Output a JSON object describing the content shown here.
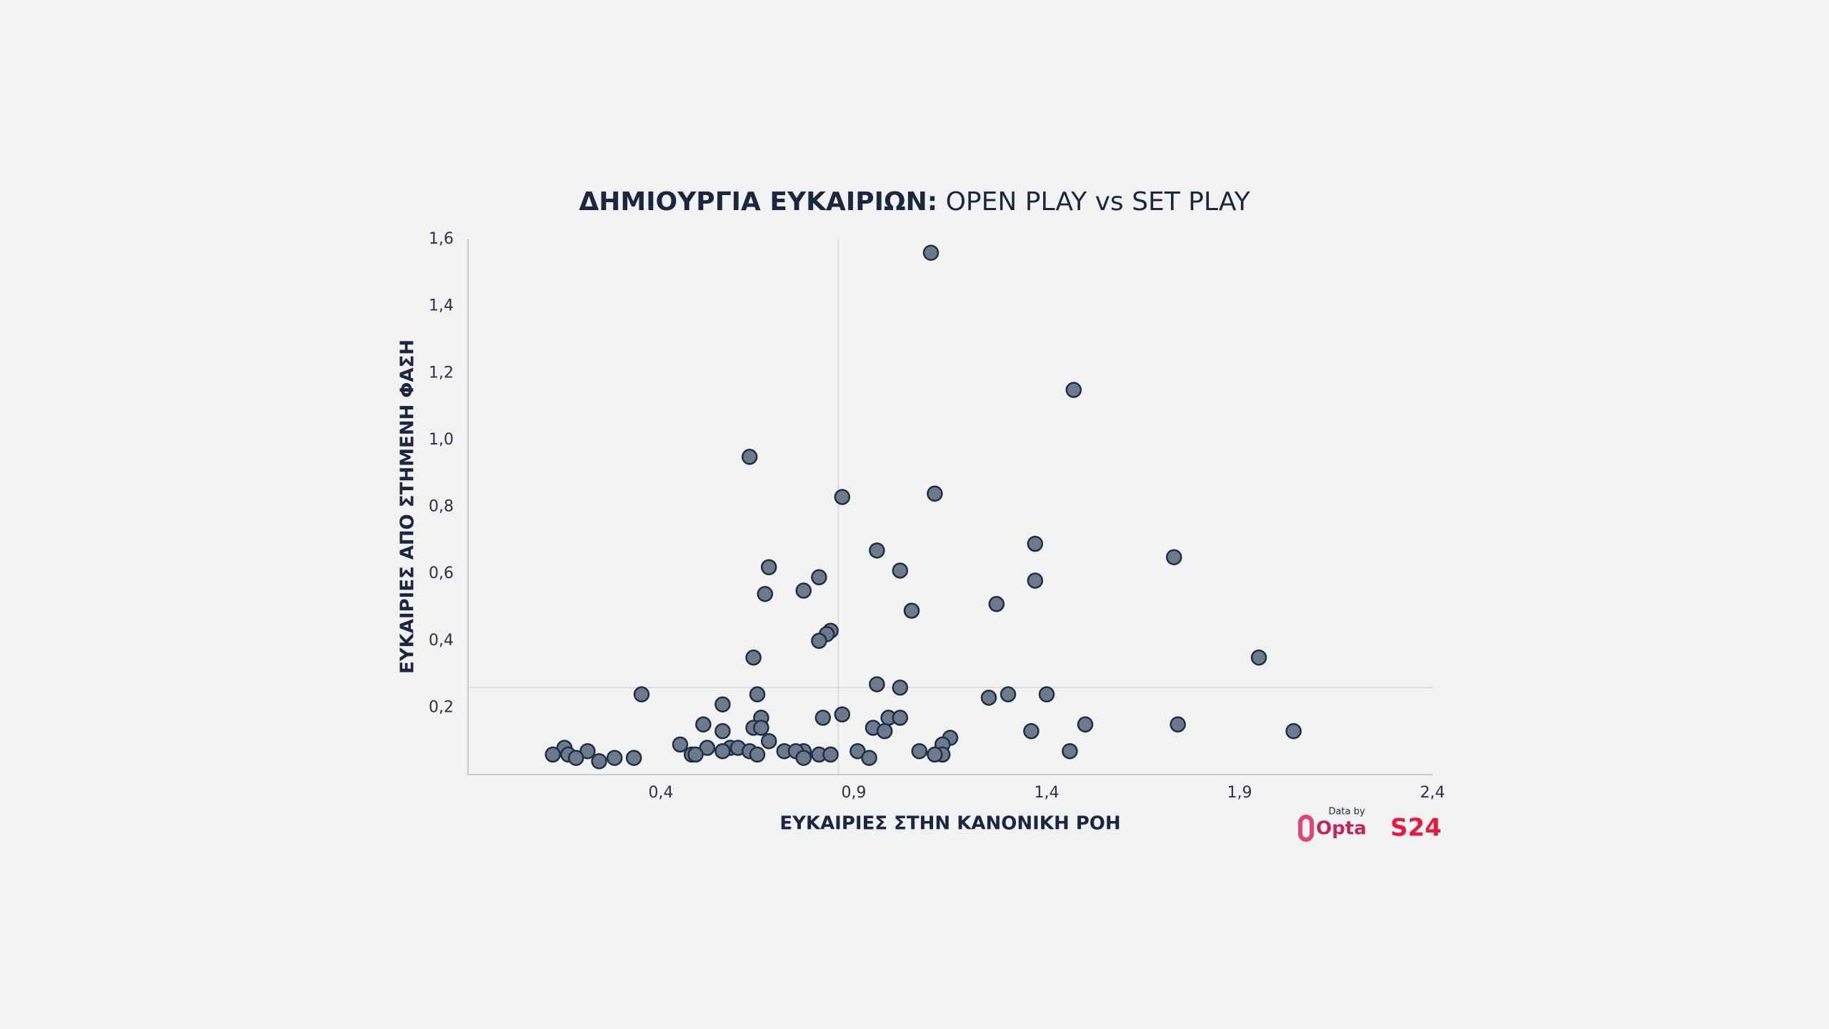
{
  "chart_data": {
    "type": "scatter",
    "title": [
      "ΔΗΜΙΟΥΡΓΙΑ ΕΥΚΑΙΡΙΩΝ:",
      "OPEN PLAY vs SET PLAY"
    ],
    "x_label": "ΕΥΚΑΙΡΙΕΣ ΣΤΗΝ ΚΑΝΟΝΙΚΗ ΡΟΗ",
    "y_label": "ΕΥΚΑΙΡΙΕΣ ΑΠΟ ΣΤΗΜΕΝΗ ΦΑΣΗ",
    "color": "#6c7b8b",
    "edge_color": "#1f2d48",
    "xlim": [
      -0.1,
      2.4
    ],
    "ylim": [
      0,
      1.6
    ],
    "xticks": [
      {
        "value": 0.4,
        "label": "0,4"
      },
      {
        "value": 0.9,
        "label": "0,9"
      },
      {
        "value": 1.4,
        "label": "1,4"
      },
      {
        "value": 1.9,
        "label": "1,9"
      },
      {
        "value": 2.4,
        "label": "2,4"
      }
    ],
    "yticks": [
      {
        "value": 0.2,
        "label": "0,2"
      },
      {
        "value": 0.4,
        "label": "0,4"
      },
      {
        "value": 0.6,
        "label": "0,6"
      },
      {
        "value": 0.8,
        "label": "0,8"
      },
      {
        "value": 1.0,
        "label": "1,0"
      },
      {
        "value": 1.2,
        "label": "1,2"
      },
      {
        "value": 1.4,
        "label": "1,4"
      },
      {
        "value": 1.6,
        "label": "1,6"
      }
    ],
    "reference_lines": {
      "x": 0.86,
      "y": 0.26
    },
    "x": [
      1.1,
      1.47,
      0.63,
      0.87,
      1.11,
      1.37,
      1.73,
      0.96,
      0.68,
      1.02,
      0.81,
      1.37,
      0.77,
      0.67,
      1.27,
      1.05,
      0.84,
      0.83,
      0.81,
      0.64,
      1.95,
      0.96,
      1.02,
      0.35,
      0.65,
      1.25,
      1.3,
      1.4,
      0.56,
      0.87,
      0.82,
      0.66,
      0.99,
      1.02,
      0.51,
      1.5,
      1.74,
      0.56,
      0.64,
      0.66,
      0.95,
      0.98,
      1.36,
      2.04,
      1.15,
      0.68,
      0.45,
      1.13,
      0.15,
      0.52,
      0.58,
      0.6,
      0.56,
      0.63,
      0.21,
      1.07,
      1.46,
      0.72,
      0.77,
      0.75,
      0.91,
      0.48,
      0.12,
      0.49,
      0.81,
      0.84,
      1.13,
      1.11,
      0.16,
      0.65,
      0.77,
      0.28,
      0.33,
      0.18,
      0.24,
      0.94
    ],
    "values": [
      1.56,
      1.15,
      0.95,
      0.83,
      0.84,
      0.69,
      0.65,
      0.67,
      0.62,
      0.61,
      0.59,
      0.58,
      0.55,
      0.54,
      0.51,
      0.49,
      0.43,
      0.42,
      0.4,
      0.35,
      0.35,
      0.27,
      0.26,
      0.24,
      0.24,
      0.23,
      0.24,
      0.24,
      0.21,
      0.18,
      0.17,
      0.17,
      0.17,
      0.17,
      0.15,
      0.15,
      0.15,
      0.13,
      0.14,
      0.14,
      0.14,
      0.13,
      0.13,
      0.13,
      0.11,
      0.1,
      0.09,
      0.09,
      0.08,
      0.08,
      0.08,
      0.08,
      0.07,
      0.07,
      0.07,
      0.07,
      0.07,
      0.07,
      0.07,
      0.07,
      0.07,
      0.06,
      0.06,
      0.06,
      0.06,
      0.06,
      0.06,
      0.06,
      0.06,
      0.06,
      0.05,
      0.05,
      0.05,
      0.05,
      0.04,
      0.05
    ],
    "branding": {
      "credit": "Data by",
      "provider": "Opta",
      "outlet": "S24"
    }
  }
}
